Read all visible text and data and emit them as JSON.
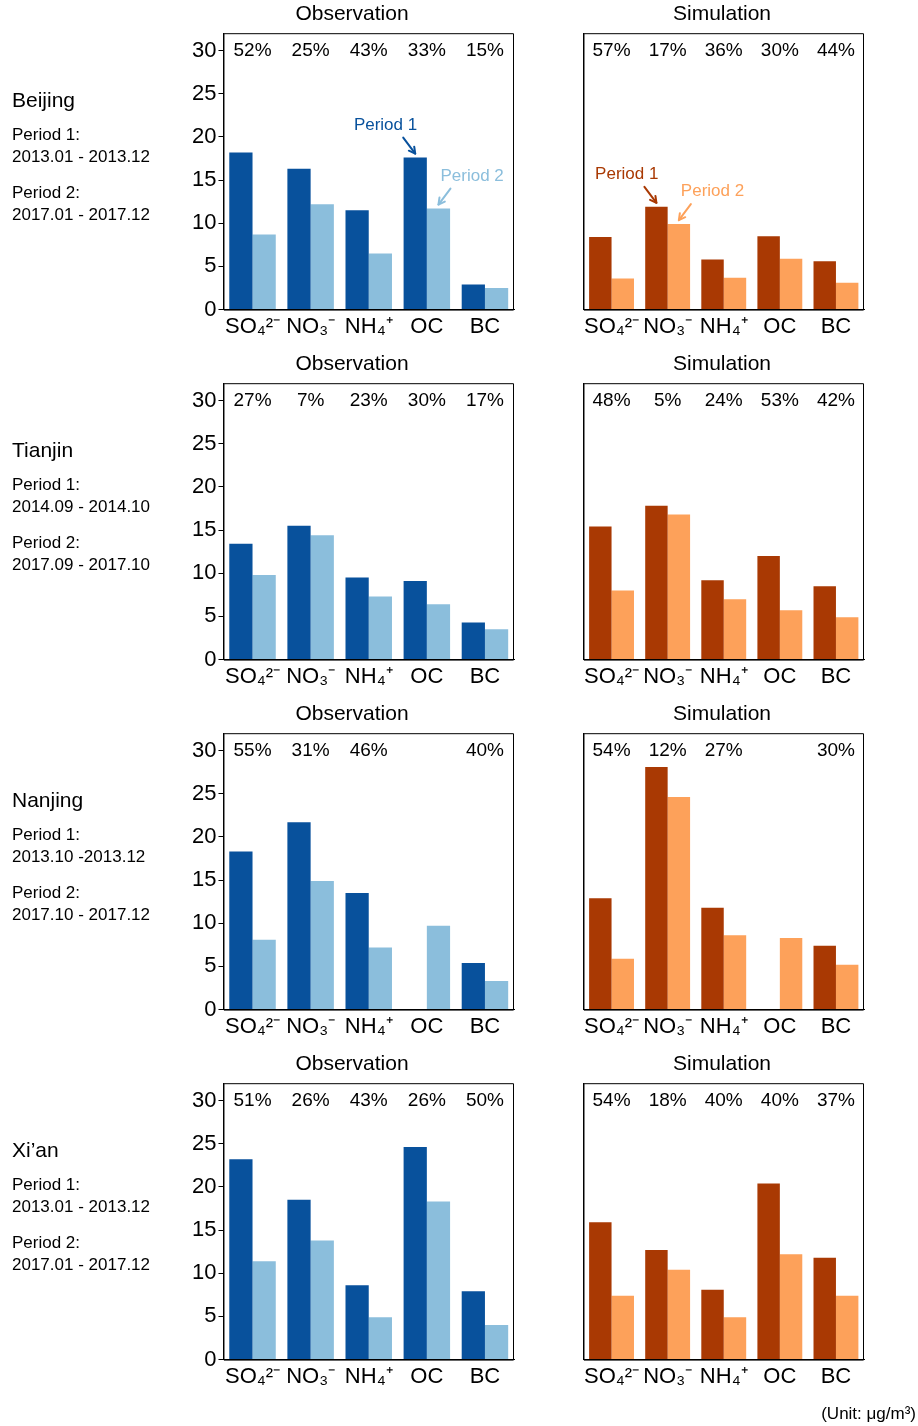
{
  "chart_data": [
    {
      "type": "bar",
      "title": "Observation",
      "categories": [
        "SO₄²⁻",
        "NO₃⁻",
        "NH₄⁺",
        "OC",
        "BC"
      ],
      "ylim": [
        0,
        32
      ],
      "yticks": [
        0,
        5,
        10,
        15,
        20,
        25,
        30
      ],
      "series": [
        {
          "color": "#08519c",
          "values": [
            18.2,
            16.3,
            11.5,
            17.6,
            2.9
          ]
        },
        {
          "color": "#8bbedc",
          "values": [
            8.7,
            12.2,
            6.5,
            11.7,
            2.5
          ]
        }
      ],
      "annotations": [
        "Beijing",
        "Period 1:",
        "2013.01 - 2013.12",
        "Period 2:",
        "2017.01 - 2017.12",
        "52%",
        "25%",
        "43%",
        "33%",
        "15%",
        {
          "text": "Period 1",
          "x": "OC",
          "y": 17.6
        },
        {
          "text": "Period 2",
          "x": "OC",
          "y": 11.7
        }
      ]
    },
    {
      "type": "bar",
      "title": "Simulation",
      "categories": [
        "SO₄²⁻",
        "NO₃⁻",
        "NH₄⁺",
        "OC",
        "BC"
      ],
      "ylim": [
        0,
        32
      ],
      "yticks": [
        0,
        5,
        10,
        15,
        20,
        25,
        30
      ],
      "tick_labels": "x",
      "series": [
        {
          "color": "#a93903",
          "values": [
            8.4,
            11.9,
            5.8,
            8.5,
            5.6
          ]
        },
        {
          "color": "#fda15a",
          "values": [
            3.6,
            9.9,
            3.7,
            5.9,
            3.1
          ]
        }
      ],
      "annotations": [
        "57%",
        "17%",
        "36%",
        "30%",
        "44%",
        {
          "text": "Period 1",
          "x": "NO₃⁻",
          "y": 11.9
        },
        {
          "text": "Period 2",
          "x": "NO₃⁻",
          "y": 9.9
        }
      ]
    },
    {
      "type": "bar",
      "title": "Observation",
      "categories": [
        "SO₄²⁻",
        "NO₃⁻",
        "NH₄⁺",
        "OC",
        "BC"
      ],
      "ylim": [
        0,
        32
      ],
      "yticks": [
        0,
        5,
        10,
        15,
        20,
        25,
        30
      ],
      "series": [
        {
          "color": "#08519c",
          "values": [
            13.4,
            15.5,
            9.5,
            9.1,
            4.3
          ]
        },
        {
          "color": "#8bbedc",
          "values": [
            9.8,
            14.4,
            7.3,
            6.4,
            3.5
          ]
        }
      ],
      "annotations": [
        "Tianjin",
        "Period 1:",
        "2014.09 - 2014.10",
        "Period 2:",
        "2017.09 - 2017.10",
        "27%",
        "7%",
        "23%",
        "30%",
        "17%"
      ]
    },
    {
      "type": "bar",
      "title": "Simulation",
      "categories": [
        "SO₄²⁻",
        "NO₃⁻",
        "NH₄⁺",
        "OC",
        "BC"
      ],
      "ylim": [
        0,
        32
      ],
      "yticks": [
        0,
        5,
        10,
        15,
        20,
        25,
        30
      ],
      "tick_labels": "x",
      "series": [
        {
          "color": "#a93903",
          "values": [
            15.4,
            17.8,
            9.2,
            12.0,
            8.5
          ]
        },
        {
          "color": "#fda15a",
          "values": [
            8.0,
            16.8,
            7.0,
            5.7,
            4.9
          ]
        }
      ],
      "annotations": [
        "48%",
        "5%",
        "24%",
        "53%",
        "42%"
      ]
    },
    {
      "type": "bar",
      "title": "Observation",
      "categories": [
        "SO₄²⁻",
        "NO₃⁻",
        "NH₄⁺",
        "OC",
        "BC"
      ],
      "ylim": [
        0,
        32
      ],
      "yticks": [
        0,
        5,
        10,
        15,
        20,
        25,
        30
      ],
      "series": [
        {
          "color": "#08519c",
          "values": [
            18.3,
            21.7,
            13.5,
            null,
            5.4
          ]
        },
        {
          "color": "#8bbedc",
          "values": [
            8.1,
            14.9,
            7.2,
            9.7,
            3.3
          ]
        }
      ],
      "annotations": [
        "Nanjing",
        "Period 1:",
        "2013.10 -2013.12",
        "Period 2:",
        "2017.10 - 2017.12",
        "55%",
        "31%",
        "46%",
        "40%"
      ]
    },
    {
      "type": "bar",
      "title": "Simulation",
      "categories": [
        "SO₄²⁻",
        "NO₃⁻",
        "NH₄⁺",
        "OC",
        "BC"
      ],
      "ylim": [
        0,
        32
      ],
      "yticks": [
        0,
        5,
        10,
        15,
        20,
        25,
        30
      ],
      "tick_labels": "x",
      "series": [
        {
          "color": "#a93903",
          "values": [
            12.9,
            28.1,
            11.8,
            null,
            7.4
          ]
        },
        {
          "color": "#fda15a",
          "values": [
            5.9,
            24.6,
            8.6,
            8.3,
            5.2
          ]
        }
      ],
      "annotations": [
        "54%",
        "12%",
        "27%",
        "30%"
      ]
    },
    {
      "type": "bar",
      "title": "Observation",
      "categories": [
        "SO₄²⁻",
        "NO₃⁻",
        "NH₄⁺",
        "OC",
        "BC"
      ],
      "ylim": [
        0,
        32
      ],
      "yticks": [
        0,
        5,
        10,
        15,
        20,
        25,
        30
      ],
      "series": [
        {
          "color": "#08519c",
          "values": [
            23.2,
            18.5,
            8.6,
            24.6,
            7.9
          ]
        },
        {
          "color": "#8bbedc",
          "values": [
            11.4,
            13.8,
            4.9,
            18.3,
            4.0
          ]
        }
      ],
      "annotations": [
        "Xi’an",
        "Period 1:",
        "2013.01 - 2013.12",
        "Period 2:",
        "2017.01 - 2017.12",
        "51%",
        "26%",
        "43%",
        "26%",
        "50%"
      ]
    },
    {
      "type": "bar",
      "title": "Simulation",
      "categories": [
        "SO₄²⁻",
        "NO₃⁻",
        "NH₄⁺",
        "OC",
        "BC"
      ],
      "ylim": [
        0,
        32
      ],
      "yticks": [
        0,
        5,
        10,
        15,
        20,
        25,
        30
      ],
      "tick_labels": "x",
      "series": [
        {
          "color": "#a93903",
          "values": [
            15.9,
            12.7,
            8.1,
            20.4,
            11.8
          ]
        },
        {
          "color": "#fda15a",
          "values": [
            7.4,
            10.4,
            4.9,
            12.2,
            7.4
          ]
        }
      ],
      "annotations": [
        "54%",
        "18%",
        "40%",
        "40%",
        "37%",
        "(Unit: μg/m³)"
      ]
    }
  ]
}
